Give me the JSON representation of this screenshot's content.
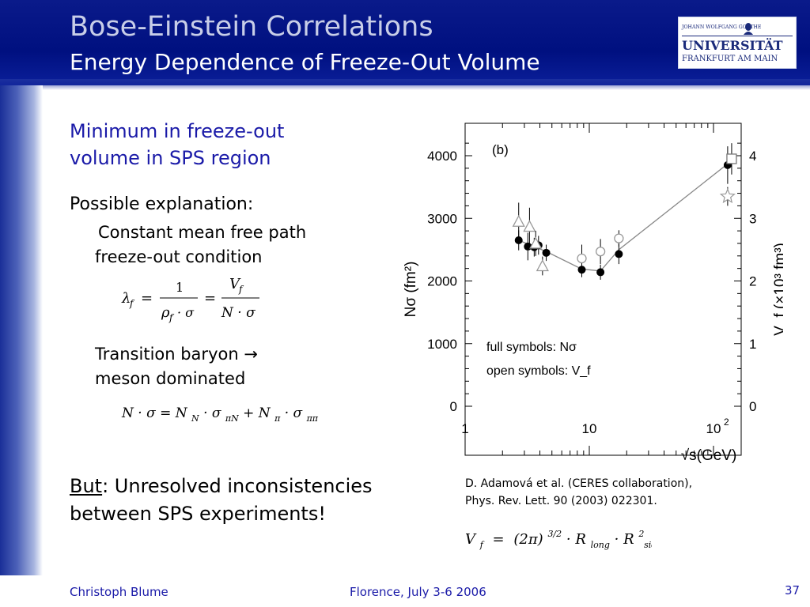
{
  "header": {
    "title": "Bose-Einstein Correlations",
    "subtitle": "Energy Dependence of Freeze-Out Volume",
    "logo_line1": "JOHANN WOLFGANG GOETHE",
    "logo_line2": "UNIVERSITÄT",
    "logo_line3": "FRANKFURT AM MAIN",
    "logo_icon": "goethe-portrait-icon"
  },
  "body": {
    "heading": [
      "Minimum in freeze-out",
      "volume in SPS region"
    ],
    "explanation_label": "Possible explanation:",
    "point1": [
      "Constant mean free path",
      "freeze-out condition"
    ],
    "formula1": {
      "lhs": "λ",
      "lhs_sub": "f",
      "eq": "=",
      "num1": "1",
      "den1_a": "ρ",
      "den1_sub": "f",
      "den1_b": "· σ",
      "eq2": "=",
      "num2": "V",
      "num2_sub": "f",
      "den2": "N · σ"
    },
    "point2": [
      "Transition baryon →",
      "meson dominated"
    ],
    "formula2": {
      "a": "N · σ = N",
      "a_sub": "N",
      "b": " · σ",
      "b_sub": "πN",
      "c": " + N",
      "c_sub": "π",
      "d": " · σ",
      "d_sub": "ππ"
    },
    "but_word": "But",
    "but_rest": ": Unresolved inconsistencies",
    "but_line2": "between SPS experiments!"
  },
  "reference": {
    "line1": "D. Adamová et al. (CERES collaboration),",
    "line2": "Phys. Rev. Lett. 90 (2003) 022301."
  },
  "formula3": {
    "lhs": "V",
    "lhs_sub": "f",
    "eq": "=",
    "paren": "(2π)",
    "exp": "3/2",
    "mid": "· R",
    "r1_sub": "long",
    "dot": "· R",
    "r2_sup": "2",
    "r2_sub": "side"
  },
  "footer": {
    "author": "Christoph Blume",
    "venue": "Florence, July 3-6 2006",
    "page": "37"
  },
  "chart_data": {
    "type": "scatter",
    "panel_label": "(b)",
    "xscale": "log",
    "xlim": [
      1,
      200
    ],
    "x_ticks": [
      "1",
      "10",
      "10²"
    ],
    "x_tick_values": [
      1,
      10,
      100
    ],
    "xlabel": "√s(GeV)",
    "ylim": [
      0,
      4000
    ],
    "y_ticks": [
      "0",
      "1000",
      "2000",
      "3000",
      "4000"
    ],
    "ylabel_left": "Nσ (fm²)",
    "ylabel_right": "V_f (×10³ fm³)",
    "y2_ticks": [
      "0",
      "1",
      "2",
      "3",
      "4"
    ],
    "legend": [
      "full symbols: Nσ",
      "open symbols: V_f"
    ],
    "series": [
      {
        "marker": "filled-circle",
        "x": [
          2.7,
          3.2,
          3.6,
          3.9,
          4.5,
          8.7,
          12.3,
          17.3,
          130
        ],
        "y": [
          2650,
          2550,
          2540,
          2570,
          2450,
          2180,
          2140,
          2430,
          3850
        ],
        "err": [
          160,
          220,
          150,
          150,
          130,
          120,
          120,
          160,
          300
        ]
      },
      {
        "marker": "open-triangle-up",
        "x": [
          2.7,
          3.3,
          3.7
        ],
        "y": [
          2950,
          2870,
          2600
        ],
        "err": [
          300,
          300,
          200
        ]
      },
      {
        "marker": "open-triangle-down",
        "x": [
          4.2
        ],
        "y": [
          2240
        ],
        "err": [
          150
        ]
      },
      {
        "marker": "open-circle",
        "x": [
          8.7,
          12.3,
          17.3
        ],
        "y": [
          2360,
          2470,
          2680
        ],
        "err": [
          220,
          200,
          130
        ]
      },
      {
        "marker": "open-square",
        "x": [
          140
        ],
        "y": [
          3950
        ],
        "err": [
          250
        ]
      },
      {
        "marker": "open-star",
        "x": [
          130
        ],
        "y": [
          3350
        ],
        "err": [
          150
        ]
      }
    ],
    "curve": {
      "x": [
        2.7,
        4.5,
        8.7,
        12.3,
        17.3,
        130
      ],
      "y": [
        2650,
        2470,
        2190,
        2160,
        2500,
        3870
      ]
    }
  }
}
